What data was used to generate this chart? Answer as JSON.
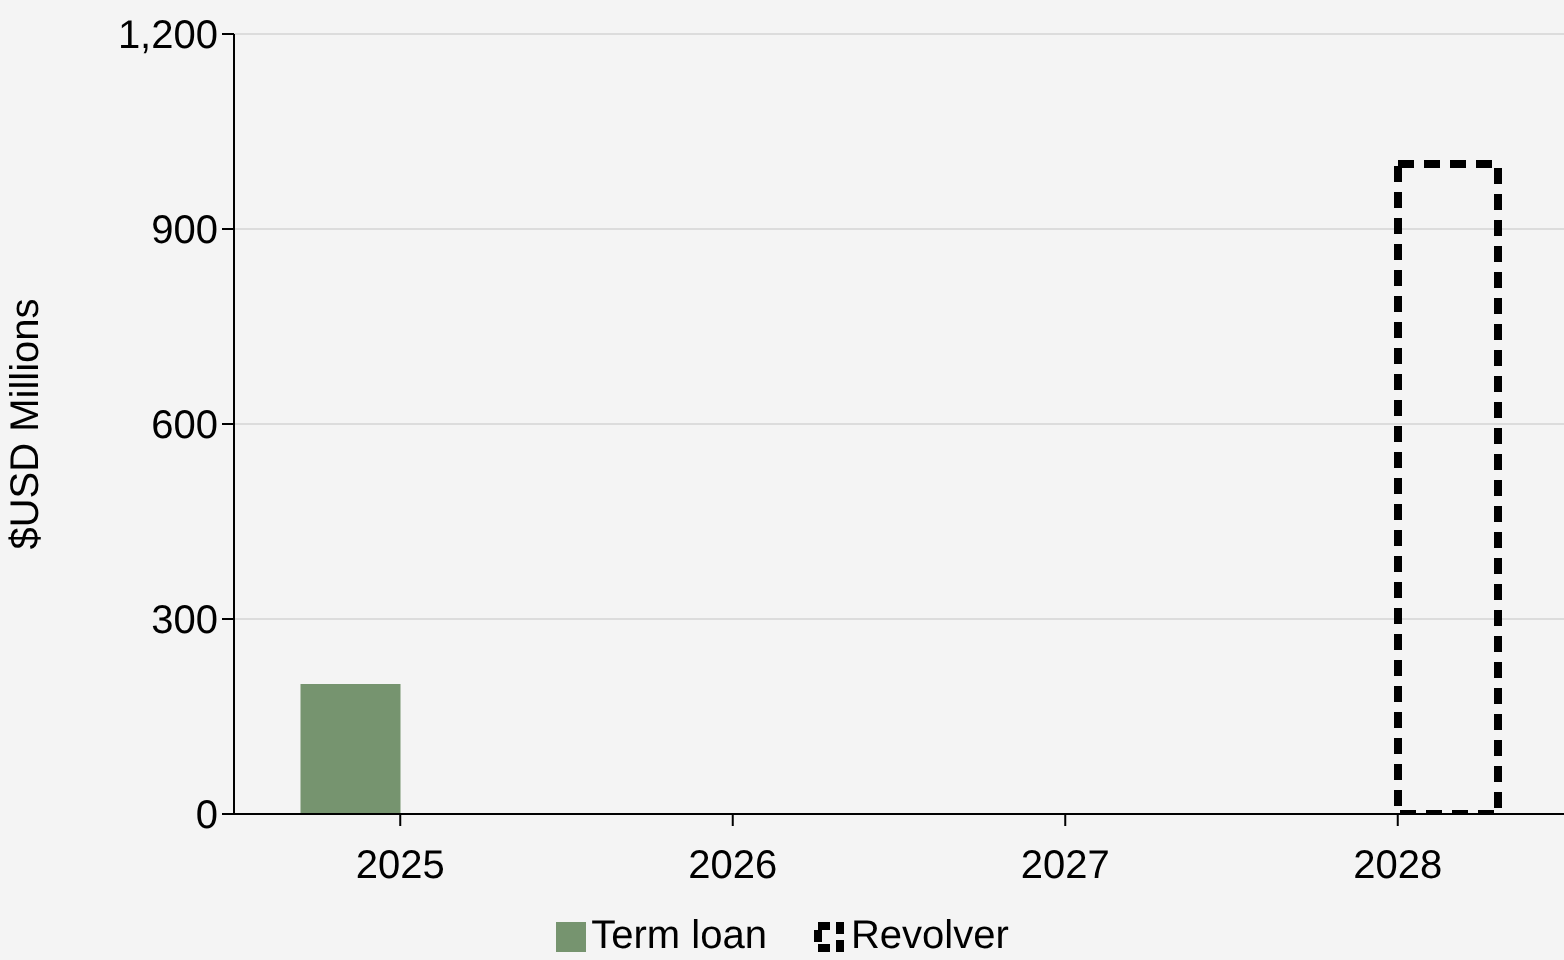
{
  "chart_data": {
    "type": "bar",
    "ylabel": "$USD Millions",
    "categories": [
      "2025",
      "2026",
      "2027",
      "2028"
    ],
    "series": [
      {
        "name": "Term loan",
        "color": "#76946f",
        "values": [
          200,
          null,
          null,
          null
        ]
      },
      {
        "name": "Revolver",
        "color": "#000000",
        "values": [
          null,
          null,
          null,
          1000
        ],
        "line_style": "dashed"
      }
    ],
    "ylim": [
      0,
      1200
    ],
    "yticks": [
      0,
      300,
      600,
      900,
      {
        "value": 1200,
        "label": "1,200"
      }
    ],
    "grid": "y",
    "legend": "bottom"
  }
}
